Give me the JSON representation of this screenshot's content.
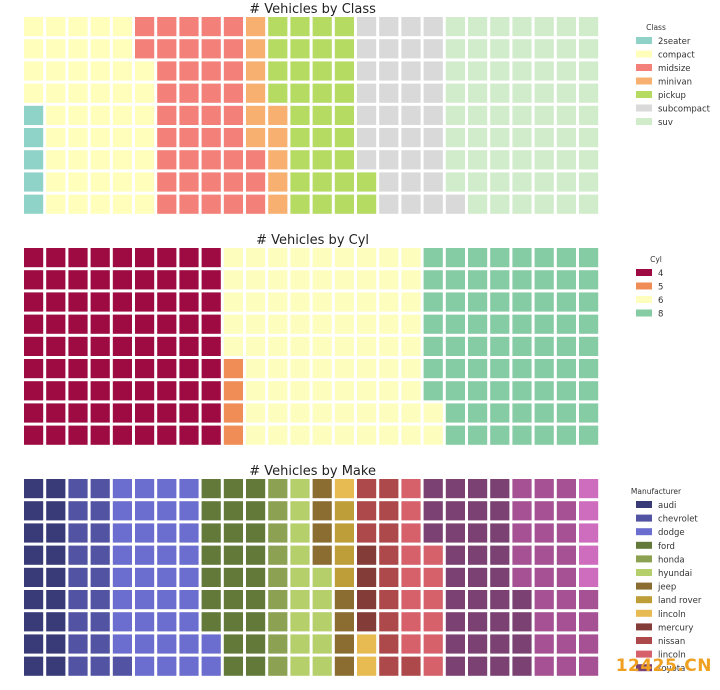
{
  "watermark": "12425.CN",
  "chart_data": [
    {
      "type": "waffle",
      "title": "# Vehicles by Class",
      "legend_title": "Class",
      "legend_position": "right",
      "grid": {
        "rows": 9,
        "cols": 26
      },
      "series": [
        {
          "name": "2seater",
          "count": 5,
          "color": "#8fd3c8"
        },
        {
          "name": "compact",
          "count": 47,
          "color": "#ffffbb"
        },
        {
          "name": "midsize",
          "count": 41,
          "color": "#f4807a"
        },
        {
          "name": "minivan",
          "count": 11,
          "color": "#f7b070"
        },
        {
          "name": "pickup",
          "count": 33,
          "color": "#b5db62"
        },
        {
          "name": "subcompact",
          "count": 35,
          "color": "#d9d9d9"
        },
        {
          "name": "suv",
          "count": 62,
          "color": "#d0ecca"
        }
      ]
    },
    {
      "type": "waffle",
      "title": "# Vehicles by Cyl",
      "legend_title": "Cyl",
      "legend_position": "right",
      "grid": {
        "rows": 9,
        "cols": 26
      },
      "series": [
        {
          "name": "4",
          "count": 81,
          "color": "#9e0a42"
        },
        {
          "name": "5",
          "count": 4,
          "color": "#f08c56"
        },
        {
          "name": "6",
          "count": 79,
          "color": "#fdfdbe"
        },
        {
          "name": "8",
          "count": 70,
          "color": "#85cba4"
        }
      ]
    },
    {
      "type": "waffle",
      "title": "# Vehicles by Make",
      "legend_title": "Manufacturer",
      "legend_position": "right",
      "grid": {
        "rows": 9,
        "cols": 26
      },
      "series": [
        {
          "name": "audi",
          "count": 18,
          "color": "#393b79"
        },
        {
          "name": "chevrolet",
          "count": 19,
          "color": "#5254a3"
        },
        {
          "name": "dodge",
          "count": 37,
          "color": "#6b6ecf"
        },
        {
          "name": "ford",
          "count": 25,
          "color": "#637939"
        },
        {
          "name": "honda",
          "count": 9,
          "color": "#8ca252"
        },
        {
          "name": "hyundai",
          "count": 14,
          "color": "#b5cf6b"
        },
        {
          "name": "jeep",
          "count": 8,
          "color": "#8c6d31"
        },
        {
          "name": "land rover",
          "count": 4,
          "color": "#bd9e39"
        },
        {
          "name": "lincoln",
          "count": 3,
          "color": "#e7ba52"
        },
        {
          "name": "mercury",
          "count": 4,
          "color": "#843c39"
        },
        {
          "name": "nissan",
          "count": 13,
          "color": "#ad494a"
        },
        {
          "name": "lincoln",
          "count": 14,
          "color": "#d6616b"
        },
        {
          "name": "toyota",
          "count": 34,
          "color": "#7b4173"
        },
        {
          "name": "",
          "count": 27,
          "color": "#a55194"
        },
        {
          "name": "",
          "count": 5,
          "color": "#ce6dbd"
        }
      ]
    }
  ]
}
